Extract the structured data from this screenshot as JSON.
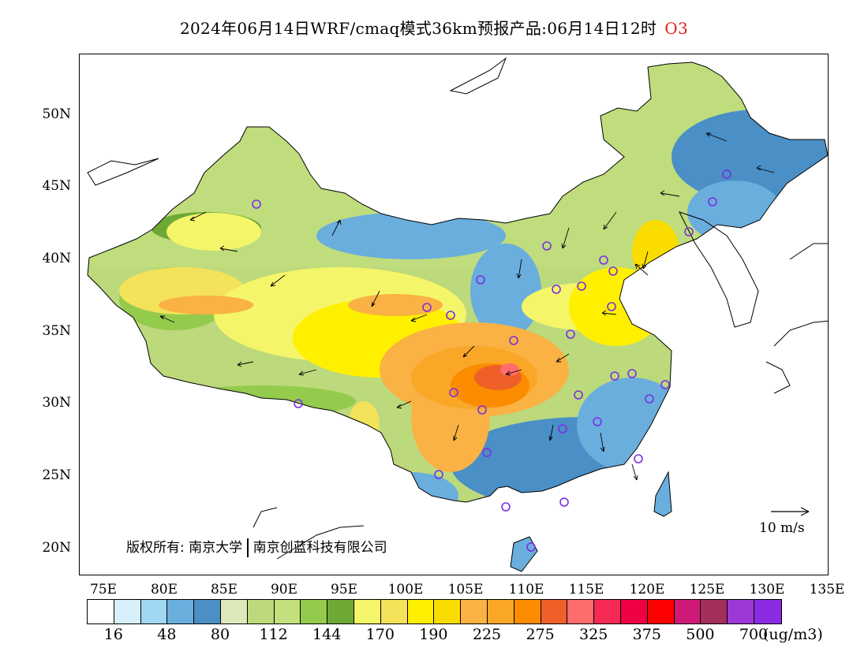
{
  "title": {
    "text": "2024年06月14日WRF/cmaq模式36km预报产品:06月14日12时",
    "species": "O3"
  },
  "axes": {
    "lat_labels": [
      "50N",
      "45N",
      "40N",
      "35N",
      "30N",
      "25N",
      "20N"
    ],
    "lon_labels": [
      "75E",
      "80E",
      "85E",
      "90E",
      "95E",
      "100E",
      "105E",
      "110E",
      "115E",
      "120E",
      "125E",
      "130E",
      "135E"
    ]
  },
  "copyright": {
    "prefix": "版权所有:",
    "org1": "南京大学",
    "org2": "南京创蓝科技有限公司"
  },
  "wind_scale": {
    "label": "10 m/s"
  },
  "colorbar": {
    "colors": [
      "#ffffff",
      "#d6effa",
      "#a0d8f4",
      "#6aaedd",
      "#4a8fc6",
      "#dceabb",
      "#bcd97c",
      "#c2e07e",
      "#94cb4c",
      "#6ea935",
      "#f4f569",
      "#f3e25a",
      "#fff000",
      "#fbdc00",
      "#f9b243",
      "#faa728",
      "#fb8c00",
      "#ee6028",
      "#ff6c6c",
      "#f52a55",
      "#ef0044",
      "#ff0000",
      "#d01a7a",
      "#a42e5c",
      "#9d37d6",
      "#8a2be2"
    ],
    "labels": [
      "16",
      "48",
      "80",
      "112",
      "144",
      "170",
      "190",
      "225",
      "275",
      "325",
      "375",
      "500",
      "700"
    ],
    "unit": "(ug/m3)"
  }
}
